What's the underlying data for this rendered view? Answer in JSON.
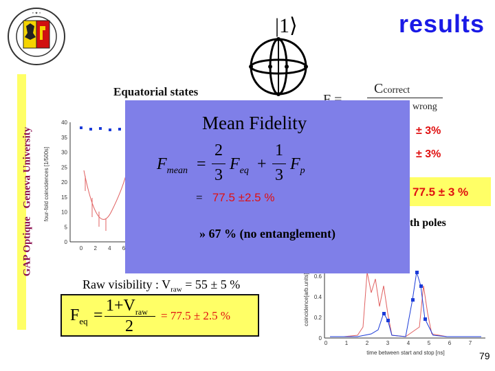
{
  "header": {
    "title": "results",
    "ket_label": "|1⟩"
  },
  "sidebar": {
    "labels": [
      "GAP Optique",
      "Geneva University"
    ]
  },
  "left_panel": {
    "heading": "Equatorial states",
    "y_axis_label": "four-fold coincidences [1/500s]",
    "y_ticks": [
      "0",
      "5",
      "10",
      "15",
      "20",
      "25",
      "30",
      "35",
      "40"
    ],
    "x_ticks": [
      "0",
      "2",
      "4",
      "6"
    ]
  },
  "formula": {
    "numerator": "C",
    "numerator_sub": "correct",
    "lhs": "F =",
    "denominator_fragment": "wrong"
  },
  "overlay": {
    "title": "Mean Fidelity",
    "formula_parts": [
      "F",
      "mean",
      "=",
      "2",
      "3",
      "F",
      "eq",
      "+",
      "1",
      "3",
      "F",
      "p"
    ],
    "equals": "=",
    "value": "77.5 ±2.5 %",
    "note": "» 67 % (no entanglement)"
  },
  "right_panel": {
    "pm1": "± 3%",
    "pm2": "± 3%",
    "box_value": "77.5 ± 3 %",
    "poles_text": "th poles",
    "y_axis_label": "coincidence[arb.units]",
    "y_ticks": [
      "0",
      "0.2",
      "0.4",
      "0.6"
    ],
    "x_ticks": [
      "0",
      "1",
      "2",
      "3",
      "4",
      "5",
      "6",
      "7"
    ],
    "x_label": "time between start and stop [ns]"
  },
  "bottom": {
    "raw_visibility_prefix": "Raw visibility : V",
    "raw_visibility_sub": "raw",
    "raw_visibility_value": "= 55 ± 5 %",
    "feq_lhs": "F",
    "feq_sub": "eq",
    "feq_eq": "=",
    "feq_num": "1+V",
    "feq_num_sub": "raw",
    "feq_den": "2",
    "feq_value": "= 77.5 ± 2.5 %"
  },
  "page_number": "79",
  "colors": {
    "title": "#1a1ae6",
    "overlay": "#7f7fe8",
    "highlight": "#ffff66",
    "accent_red": "#e01010",
    "side_text": "#8a0e4f"
  }
}
